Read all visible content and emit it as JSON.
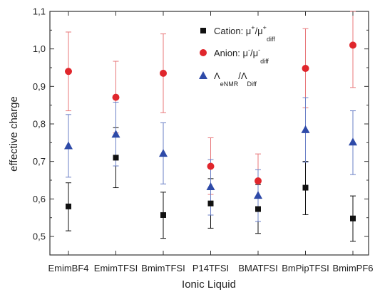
{
  "chart_data": {
    "type": "scatter",
    "xlabel": "Ionic Liquid",
    "ylabel": "effective charge",
    "ylim": [
      0.45,
      1.1
    ],
    "yticks": [
      "0,5",
      "0,6",
      "0,7",
      "0,8",
      "0,9",
      "1,0",
      "1,1"
    ],
    "ytick_values": [
      0.5,
      0.6,
      0.7,
      0.8,
      0.9,
      1.0,
      1.1
    ],
    "categories": [
      "EmimBF4",
      "EmimTFSI",
      "BmimTFSI",
      "P14TFSI",
      "BMATFSI",
      "BmPipTFSI",
      "BmimPF6"
    ],
    "grid": false,
    "legend_position": "top-right",
    "series": [
      {
        "name": "Cation: μ*/μ*diff",
        "legend_main": "Cation: μ",
        "legend_parts": [
          {
            "t": "Cation: μ",
            "s": "normal"
          },
          {
            "t": "+",
            "s": "sup"
          },
          {
            "t": "/μ",
            "s": "normal"
          },
          {
            "t": "+",
            "s": "sup"
          },
          {
            "t": "diff",
            "s": "sub"
          }
        ],
        "marker": "square",
        "color": "#111111",
        "errcolor": "#111111",
        "values": [
          0.58,
          0.71,
          0.557,
          0.588,
          0.573,
          0.63,
          0.548
        ],
        "err_low": [
          0.515,
          0.63,
          0.495,
          0.522,
          0.508,
          0.558,
          0.487
        ],
        "err_high": [
          0.643,
          0.79,
          0.618,
          0.654,
          0.638,
          0.7,
          0.608
        ]
      },
      {
        "name": "Anion: μ-/μ-diff",
        "legend_parts": [
          {
            "t": "Anion: μ",
            "s": "normal"
          },
          {
            "t": "-",
            "s": "sup"
          },
          {
            "t": "/μ",
            "s": "normal"
          },
          {
            "t": "-",
            "s": "sup"
          },
          {
            "t": "diff",
            "s": "sub"
          }
        ],
        "marker": "circle",
        "color": "#e0262c",
        "errcolor": "#e8777a",
        "values": [
          0.94,
          0.871,
          0.935,
          0.687,
          0.648,
          0.948,
          1.01
        ],
        "err_low": [
          0.835,
          0.776,
          0.83,
          0.612,
          0.578,
          0.843,
          0.897
        ],
        "err_high": [
          1.045,
          0.967,
          1.04,
          0.763,
          0.72,
          1.054,
          1.1
        ]
      },
      {
        "name": "ΛeNMR/ΛDiff",
        "legend_parts": [
          {
            "t": "Λ",
            "s": "normal"
          },
          {
            "t": "eNMR",
            "s": "sub"
          },
          {
            "t": "/Λ",
            "s": "normal"
          },
          {
            "t": "Diff",
            "s": "sub"
          }
        ],
        "marker": "triangle",
        "color": "#2e4aa8",
        "errcolor": "#6a7fc6",
        "values": [
          0.742,
          0.773,
          0.722,
          0.633,
          0.61,
          0.785,
          0.752
        ],
        "err_low": [
          0.658,
          0.688,
          0.64,
          0.557,
          0.54,
          0.698,
          0.665
        ],
        "err_high": [
          0.825,
          0.858,
          0.803,
          0.705,
          0.678,
          0.87,
          0.835
        ]
      }
    ]
  }
}
